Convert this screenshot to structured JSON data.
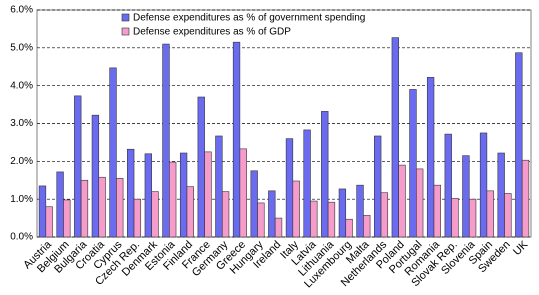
{
  "chart_data": {
    "type": "bar",
    "categories": [
      "Austria",
      "Belgium",
      "Bulgaria",
      "Croatia",
      "Cyprus",
      "Czech Rep.",
      "Denmark",
      "Estonia",
      "Finland",
      "France",
      "Germany",
      "Greece",
      "Hungary",
      "Ireland",
      "Italy",
      "Latvia",
      "Lithuania",
      "Luxembourg",
      "Malta",
      "Netherlands",
      "Poland",
      "Portugal",
      "Romania",
      "Slovak Rep.",
      "Slovenia",
      "Spain",
      "Sweden",
      "UK"
    ],
    "series": [
      {
        "name": "Defense expenditures as % of government spending",
        "color": "#6b6bf0",
        "values": [
          1.35,
          1.72,
          3.73,
          3.22,
          4.47,
          2.32,
          2.2,
          5.1,
          2.22,
          3.7,
          2.67,
          5.15,
          1.75,
          1.22,
          2.6,
          2.83,
          3.32,
          1.27,
          1.37,
          2.67,
          5.27,
          3.9,
          4.22,
          2.72,
          2.15,
          2.75,
          2.22,
          4.87
        ]
      },
      {
        "name": "Defense expenditures as % of GDP",
        "color": "#f59ccb",
        "values": [
          0.8,
          0.98,
          1.5,
          1.58,
          1.55,
          1.0,
          1.2,
          1.98,
          1.33,
          2.25,
          1.2,
          2.33,
          0.9,
          0.5,
          1.48,
          0.95,
          0.92,
          0.47,
          0.57,
          1.17,
          1.9,
          1.8,
          1.37,
          1.02,
          1.0,
          1.22,
          1.15,
          2.03
        ]
      }
    ],
    "ylim": [
      0,
      6
    ],
    "yticks": [
      {
        "value": 0,
        "label": "0.0%"
      },
      {
        "value": 1,
        "label": "1.0%"
      },
      {
        "value": 2,
        "label": "2.0%"
      },
      {
        "value": 3,
        "label": "3.0%"
      },
      {
        "value": 4,
        "label": "4.0%"
      },
      {
        "value": 5,
        "label": "5.0%"
      },
      {
        "value": 6,
        "label": "6.0%"
      }
    ],
    "grid": true
  }
}
